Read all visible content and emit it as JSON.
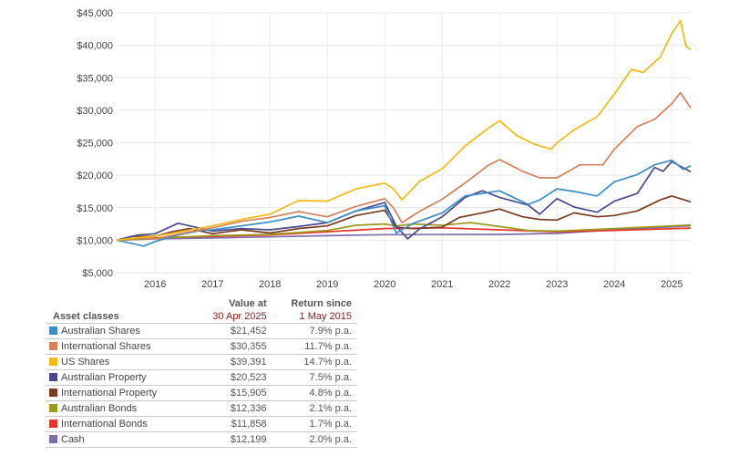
{
  "chart_data": {
    "type": "line",
    "title": "",
    "xlabel": "",
    "ylabel": "",
    "x_ticks": [
      "2016",
      "2017",
      "2018",
      "2019",
      "2020",
      "2021",
      "2022",
      "2023",
      "2024",
      "2025"
    ],
    "xlim": [
      2015.33,
      2025.33
    ],
    "y_ticks": [
      "$5,000",
      "$10,000",
      "$15,000",
      "$20,000",
      "$25,000",
      "$30,000",
      "$35,000",
      "$40,000",
      "$45,000"
    ],
    "ylim": [
      5000,
      45000
    ],
    "grid": true,
    "series": [
      {
        "name": "Cash",
        "color": "#7e6eaa",
        "points": [
          [
            2015.33,
            10000
          ],
          [
            2016,
            10200
          ],
          [
            2017,
            10350
          ],
          [
            2018,
            10520
          ],
          [
            2019,
            10700
          ],
          [
            2020,
            10850
          ],
          [
            2021,
            10870
          ],
          [
            2022,
            10880
          ],
          [
            2023,
            11050
          ],
          [
            2024,
            11600
          ],
          [
            2025.33,
            12199
          ]
        ]
      },
      {
        "name": "International Bonds",
        "color": "#e8352b",
        "points": [
          [
            2015.33,
            10000
          ],
          [
            2016,
            10350
          ],
          [
            2017,
            10600
          ],
          [
            2018,
            10800
          ],
          [
            2019,
            11300
          ],
          [
            2020,
            11800
          ],
          [
            2021,
            11900
          ],
          [
            2022,
            11600
          ],
          [
            2023,
            11300
          ],
          [
            2024,
            11500
          ],
          [
            2025.33,
            11858
          ]
        ]
      },
      {
        "name": "Australian Bonds",
        "color": "#9c9a1c",
        "points": [
          [
            2015.33,
            10000
          ],
          [
            2016,
            10300
          ],
          [
            2017,
            10700
          ],
          [
            2018,
            10900
          ],
          [
            2019,
            11500
          ],
          [
            2019.5,
            12300
          ],
          [
            2020,
            12500
          ],
          [
            2020.2,
            12200
          ],
          [
            2020.5,
            12500
          ],
          [
            2021,
            12300
          ],
          [
            2021.5,
            12700
          ],
          [
            2022,
            12100
          ],
          [
            2022.5,
            11500
          ],
          [
            2023,
            11400
          ],
          [
            2023.5,
            11600
          ],
          [
            2024,
            11800
          ],
          [
            2024.5,
            12000
          ],
          [
            2025.33,
            12336
          ]
        ]
      },
      {
        "name": "International Property",
        "color": "#7a3b22",
        "points": [
          [
            2015.33,
            10000
          ],
          [
            2015.6,
            10600
          ],
          [
            2016,
            10600
          ],
          [
            2016.3,
            11300
          ],
          [
            2016.6,
            11800
          ],
          [
            2017,
            11000
          ],
          [
            2017.5,
            11600
          ],
          [
            2018,
            11100
          ],
          [
            2018.5,
            11800
          ],
          [
            2019,
            12200
          ],
          [
            2019.5,
            13800
          ],
          [
            2020,
            14600
          ],
          [
            2020.2,
            12000
          ],
          [
            2020.5,
            11800
          ],
          [
            2021,
            12000
          ],
          [
            2021.3,
            13500
          ],
          [
            2021.7,
            14200
          ],
          [
            2022,
            14800
          ],
          [
            2022.4,
            13600
          ],
          [
            2022.7,
            13200
          ],
          [
            2023,
            13100
          ],
          [
            2023.3,
            14200
          ],
          [
            2023.7,
            13600
          ],
          [
            2024,
            13800
          ],
          [
            2024.4,
            14500
          ],
          [
            2024.8,
            16200
          ],
          [
            2025,
            16800
          ],
          [
            2025.33,
            15905
          ]
        ]
      },
      {
        "name": "Australian Property",
        "color": "#4a4a8c",
        "points": [
          [
            2015.33,
            10000
          ],
          [
            2015.7,
            10800
          ],
          [
            2016,
            11000
          ],
          [
            2016.4,
            12600
          ],
          [
            2016.7,
            12000
          ],
          [
            2017,
            11400
          ],
          [
            2017.5,
            11800
          ],
          [
            2018,
            11600
          ],
          [
            2018.5,
            12100
          ],
          [
            2019,
            12700
          ],
          [
            2019.5,
            14500
          ],
          [
            2020,
            15800
          ],
          [
            2020.2,
            12200
          ],
          [
            2020.4,
            10200
          ],
          [
            2020.6,
            11700
          ],
          [
            2021,
            13600
          ],
          [
            2021.4,
            16600
          ],
          [
            2021.7,
            17600
          ],
          [
            2022,
            16600
          ],
          [
            2022.5,
            15400
          ],
          [
            2022.7,
            14000
          ],
          [
            2023,
            16400
          ],
          [
            2023.3,
            15100
          ],
          [
            2023.7,
            14300
          ],
          [
            2024,
            16000
          ],
          [
            2024.4,
            17200
          ],
          [
            2024.7,
            21200
          ],
          [
            2024.85,
            20600
          ],
          [
            2025,
            22100
          ],
          [
            2025.33,
            20523
          ]
        ]
      },
      {
        "name": "Australian Shares",
        "color": "#3d8cc4",
        "points": [
          [
            2015.33,
            10000
          ],
          [
            2015.6,
            9500
          ],
          [
            2015.8,
            9100
          ],
          [
            2016,
            9800
          ],
          [
            2016.4,
            10800
          ],
          [
            2016.8,
            11500
          ],
          [
            2017,
            11600
          ],
          [
            2017.5,
            12200
          ],
          [
            2018,
            12800
          ],
          [
            2018.5,
            13700
          ],
          [
            2019,
            12700
          ],
          [
            2019.5,
            14500
          ],
          [
            2020,
            15300
          ],
          [
            2020.2,
            11100
          ],
          [
            2020.5,
            12600
          ],
          [
            2021,
            14200
          ],
          [
            2021.4,
            16800
          ],
          [
            2021.7,
            17200
          ],
          [
            2022,
            17600
          ],
          [
            2022.5,
            15500
          ],
          [
            2022.7,
            16200
          ],
          [
            2023,
            17900
          ],
          [
            2023.3,
            17500
          ],
          [
            2023.7,
            16800
          ],
          [
            2024,
            19000
          ],
          [
            2024.4,
            20100
          ],
          [
            2024.7,
            21600
          ],
          [
            2025,
            22300
          ],
          [
            2025.2,
            20900
          ],
          [
            2025.33,
            21452
          ]
        ]
      },
      {
        "name": "International Shares",
        "color": "#d4815c",
        "points": [
          [
            2015.33,
            10000
          ],
          [
            2015.7,
            10300
          ],
          [
            2016,
            10200
          ],
          [
            2016.5,
            11100
          ],
          [
            2017,
            11900
          ],
          [
            2017.5,
            12900
          ],
          [
            2018,
            13500
          ],
          [
            2018.5,
            14400
          ],
          [
            2019,
            13600
          ],
          [
            2019.5,
            15200
          ],
          [
            2020,
            16400
          ],
          [
            2020.15,
            15000
          ],
          [
            2020.3,
            12700
          ],
          [
            2020.6,
            14400
          ],
          [
            2021,
            16300
          ],
          [
            2021.4,
            18800
          ],
          [
            2021.8,
            21500
          ],
          [
            2022,
            22400
          ],
          [
            2022.4,
            20600
          ],
          [
            2022.7,
            19600
          ],
          [
            2023,
            19600
          ],
          [
            2023.4,
            21600
          ],
          [
            2023.8,
            21600
          ],
          [
            2024,
            24000
          ],
          [
            2024.4,
            27500
          ],
          [
            2024.7,
            28600
          ],
          [
            2025,
            31000
          ],
          [
            2025.15,
            32700
          ],
          [
            2025.33,
            30355
          ]
        ]
      },
      {
        "name": "US Shares",
        "color": "#f3b913",
        "points": [
          [
            2015.33,
            10000
          ],
          [
            2015.7,
            10400
          ],
          [
            2016,
            10600
          ],
          [
            2016.5,
            11400
          ],
          [
            2017,
            12200
          ],
          [
            2017.5,
            13200
          ],
          [
            2018,
            14000
          ],
          [
            2018.5,
            16100
          ],
          [
            2019,
            16000
          ],
          [
            2019.5,
            17900
          ],
          [
            2020,
            18800
          ],
          [
            2020.15,
            17900
          ],
          [
            2020.3,
            16200
          ],
          [
            2020.6,
            19000
          ],
          [
            2021,
            21000
          ],
          [
            2021.4,
            24500
          ],
          [
            2021.8,
            27200
          ],
          [
            2022,
            28400
          ],
          [
            2022.3,
            26100
          ],
          [
            2022.6,
            24800
          ],
          [
            2022.9,
            24000
          ],
          [
            2023,
            25000
          ],
          [
            2023.3,
            27000
          ],
          [
            2023.7,
            29000
          ],
          [
            2024,
            32500
          ],
          [
            2024.3,
            36300
          ],
          [
            2024.5,
            35800
          ],
          [
            2024.8,
            38200
          ],
          [
            2025,
            41800
          ],
          [
            2025.15,
            43800
          ],
          [
            2025.25,
            39800
          ],
          [
            2025.33,
            39391
          ]
        ]
      }
    ]
  },
  "legend": {
    "header_col1": "Asset classes",
    "header_col2_line1": "Value at",
    "header_col2_line2": "30 Apr 2025",
    "header_col3_line1": "Return since",
    "header_col3_line2": "1 May 2015",
    "rows": [
      {
        "name": "Australian Shares",
        "color": "#3d8cc4",
        "value": "$21,452",
        "return": "7.9% p.a."
      },
      {
        "name": "International Shares",
        "color": "#d4815c",
        "value": "$30,355",
        "return": "11.7% p.a."
      },
      {
        "name": "US Shares",
        "color": "#f3b913",
        "value": "$39,391",
        "return": "14.7% p.a."
      },
      {
        "name": "Australian Property",
        "color": "#4a4a8c",
        "value": "$20,523",
        "return": "7.5% p.a."
      },
      {
        "name": "International Property",
        "color": "#7a3b22",
        "value": "$15,905",
        "return": "4.8% p.a."
      },
      {
        "name": "Australian Bonds",
        "color": "#9c9a1c",
        "value": "$12,336",
        "return": "2.1% p.a."
      },
      {
        "name": "International Bonds",
        "color": "#e8352b",
        "value": "$11,858",
        "return": "1.7% p.a."
      },
      {
        "name": "Cash",
        "color": "#7e6eaa",
        "value": "$12,199",
        "return": "2.0% p.a."
      }
    ]
  }
}
